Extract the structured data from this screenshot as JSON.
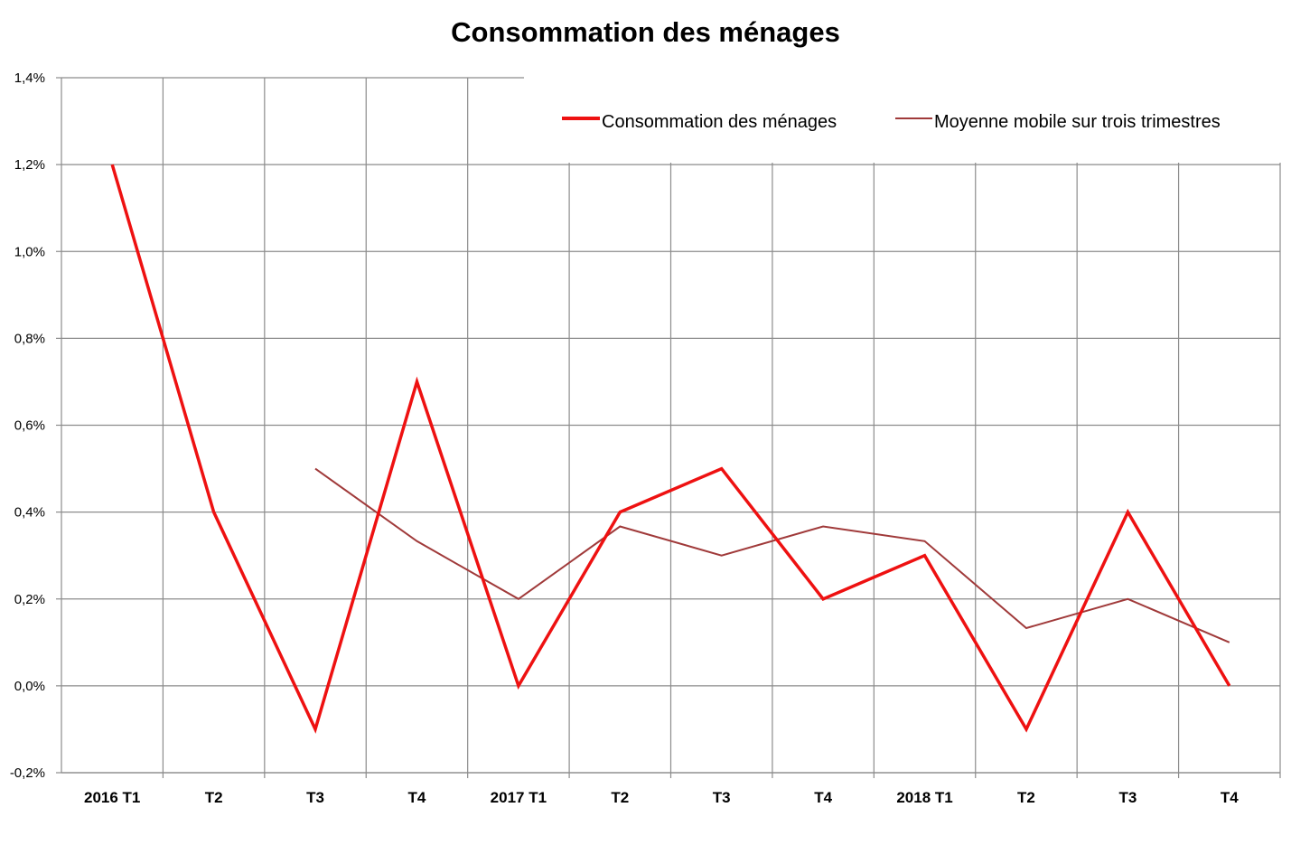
{
  "chart_data": {
    "type": "line",
    "title": "Consommation des ménages",
    "xlabel": "",
    "ylabel": "",
    "categories": [
      "2016 T1",
      "T2",
      "T3",
      "T4",
      "2017 T1",
      "T2",
      "T3",
      "T4",
      "2018 T1",
      "T2",
      "T3",
      "T4"
    ],
    "ylim": [
      -0.2,
      1.4
    ],
    "y_ticks": [
      -0.2,
      0.0,
      0.2,
      0.4,
      0.6,
      0.8,
      1.0,
      1.2,
      1.4
    ],
    "y_tick_labels": [
      "-0,2%",
      "0,0%",
      "0,2%",
      "0,4%",
      "0,6%",
      "0,8%",
      "1,0%",
      "1,2%",
      "1,4%"
    ],
    "grid": true,
    "legend_position": "top-right",
    "series": [
      {
        "name": "Consommation des ménages",
        "color": "#ee1111",
        "values": [
          1.2,
          0.4,
          -0.1,
          0.7,
          0.0,
          0.4,
          0.5,
          0.2,
          0.3,
          -0.1,
          0.4,
          0.0
        ]
      },
      {
        "name": "Moyenne mobile sur trois trimestres",
        "color": "#a03a3a",
        "values": [
          null,
          null,
          0.5,
          0.333,
          0.2,
          0.367,
          0.3,
          0.367,
          0.333,
          0.133,
          0.2,
          0.1
        ]
      }
    ]
  }
}
